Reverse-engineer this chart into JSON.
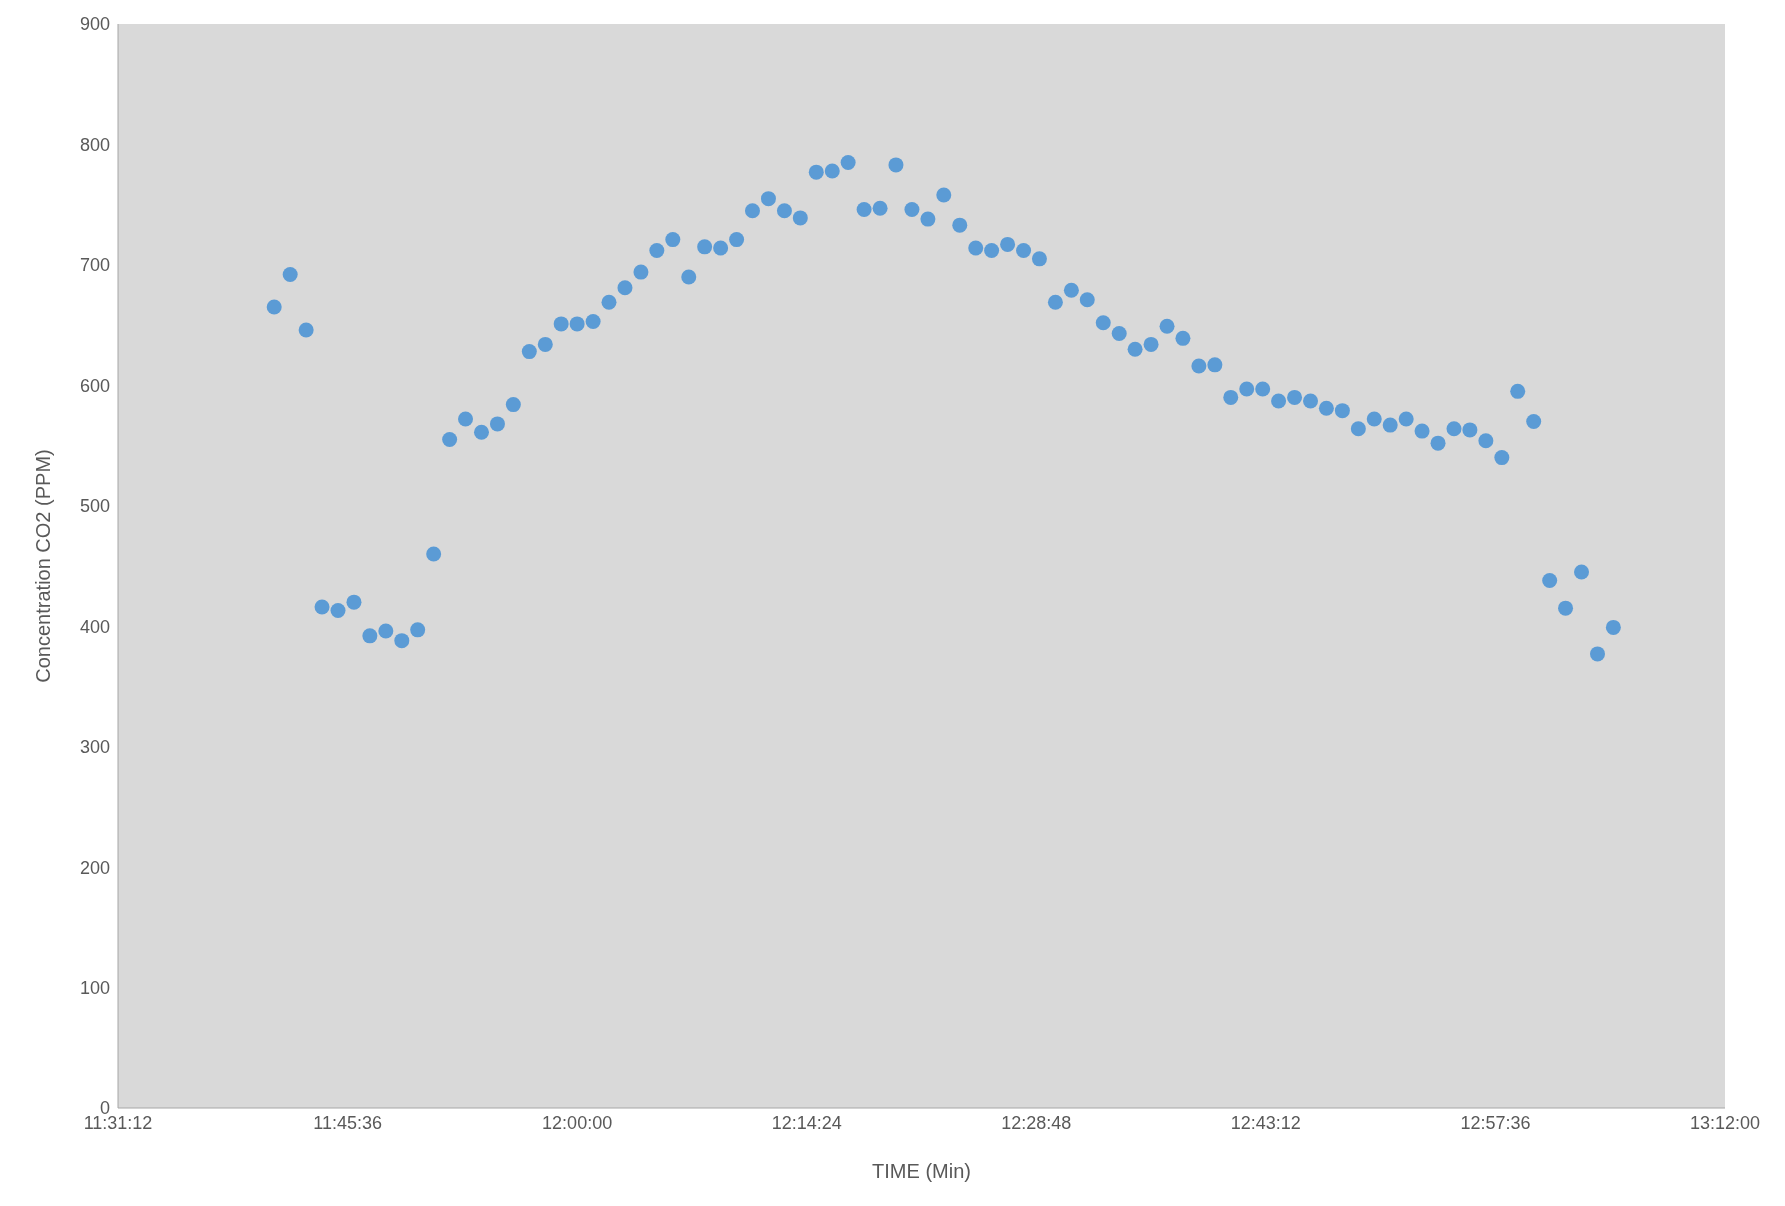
{
  "chart_data": {
    "type": "scatter",
    "xlabel": "TIME (Min)",
    "ylabel": "Concentration CO2 (PPM)",
    "x": [
      11.6833,
      11.7,
      11.7167,
      11.7333,
      11.75,
      11.7667,
      11.7833,
      11.8,
      11.8167,
      11.8333,
      11.85,
      11.8667,
      11.8833,
      11.9,
      11.9167,
      11.9333,
      11.95,
      11.9667,
      11.9833,
      12.0,
      12.0167,
      12.0333,
      12.05,
      12.0667,
      12.0833,
      12.1,
      12.1167,
      12.1333,
      12.15,
      12.1667,
      12.1833,
      12.2,
      12.2167,
      12.2333,
      12.25,
      12.2667,
      12.2833,
      12.3,
      12.3167,
      12.3333,
      12.35,
      12.3667,
      12.3833,
      12.4,
      12.4167,
      12.4333,
      12.45,
      12.4667,
      12.4833,
      12.5,
      12.5167,
      12.5333,
      12.55,
      12.5667,
      12.5833,
      12.6,
      12.6167,
      12.6333,
      12.65,
      12.6667,
      12.6833,
      12.7,
      12.7167,
      12.7333,
      12.75,
      12.7667,
      12.7833,
      12.8,
      12.8167,
      12.8333,
      12.85,
      12.8667,
      12.8833,
      12.9,
      12.9167,
      12.9333,
      12.95,
      12.9667,
      12.9833,
      13.0,
      13.0167,
      13.0333,
      13.05,
      13.0667,
      13.0833
    ],
    "series": [
      {
        "color": "#5b9bd5",
        "values": [
          665,
          692,
          646,
          416,
          413,
          420,
          392,
          396,
          388,
          397,
          460,
          555,
          572,
          561,
          568,
          584,
          628,
          634,
          651,
          651,
          653,
          669,
          681,
          694,
          712,
          721,
          690,
          715,
          714,
          721,
          745,
          755,
          745,
          739,
          777,
          778,
          785,
          746,
          747,
          783,
          746,
          738,
          758,
          733,
          714,
          712,
          717,
          712,
          705,
          669,
          679,
          671,
          652,
          643,
          630,
          634,
          649,
          639,
          616,
          617,
          590,
          597,
          597,
          587,
          590,
          587,
          581,
          579,
          564,
          572,
          567,
          572,
          562,
          552,
          564,
          563,
          554,
          540,
          595,
          570,
          438,
          415,
          445,
          377,
          399
        ]
      }
    ],
    "xlim": [
      11.52,
      13.2
    ],
    "xticks": [
      {
        "value": 11.52,
        "label": "11:31:12"
      },
      {
        "value": 11.76,
        "label": "11:45:36"
      },
      {
        "value": 12.0,
        "label": "12:00:00"
      },
      {
        "value": 12.24,
        "label": "12:14:24"
      },
      {
        "value": 12.48,
        "label": "12:28:48"
      },
      {
        "value": 12.72,
        "label": "12:43:12"
      },
      {
        "value": 12.96,
        "label": "12:57:36"
      },
      {
        "value": 13.2,
        "label": "13:12:00"
      }
    ],
    "ylim": [
      0,
      900
    ],
    "yticks": [
      0,
      100,
      200,
      300,
      400,
      500,
      600,
      700,
      800,
      900
    ],
    "grid": false,
    "legend": false,
    "marker": "circle"
  }
}
